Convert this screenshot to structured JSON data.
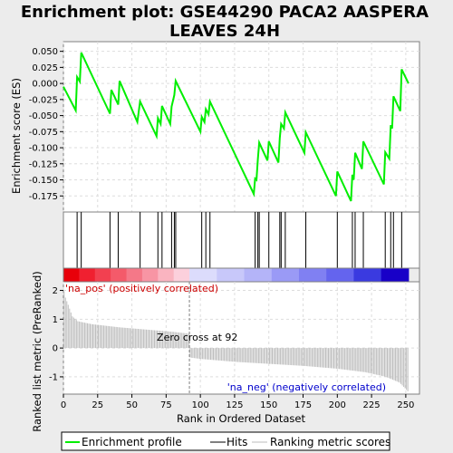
{
  "chart_data": {
    "type": "line",
    "title_line1": "Enrichment plot: GSE44290 PACA2 AASPERA",
    "title_line2": "LEAVES 24H",
    "top_panel": {
      "ylabel": "Enrichment score (ES)",
      "ylim": [
        -0.2,
        0.065
      ],
      "yticks": [
        "0.050",
        "0.025",
        "0.000",
        "-0.025",
        "-0.050",
        "-0.075",
        "-0.100",
        "-0.125",
        "-0.150",
        "-0.175"
      ],
      "ytick_values": [
        0.05,
        0.025,
        0.0,
        -0.025,
        -0.05,
        -0.075,
        -0.1,
        -0.125,
        -0.15,
        -0.175
      ],
      "grid": true,
      "line_color": "#00ee00",
      "es_points": [
        [
          0,
          -0.005
        ],
        [
          9,
          -0.042
        ],
        [
          10,
          0.01
        ],
        [
          12,
          0.003
        ],
        [
          13,
          0.048
        ],
        [
          34,
          -0.047
        ],
        [
          35,
          -0.01
        ],
        [
          40,
          -0.033
        ],
        [
          41,
          0.004
        ],
        [
          54,
          -0.06
        ],
        [
          56,
          -0.028
        ],
        [
          68,
          -0.082
        ],
        [
          69,
          -0.054
        ],
        [
          71,
          -0.063
        ],
        [
          72,
          -0.035
        ],
        [
          78,
          -0.063
        ],
        [
          79,
          -0.036
        ],
        [
          81,
          -0.018
        ],
        [
          82,
          0.004
        ],
        [
          100,
          -0.075
        ],
        [
          101,
          -0.052
        ],
        [
          103,
          -0.06
        ],
        [
          104,
          -0.04
        ],
        [
          106,
          -0.048
        ],
        [
          107,
          -0.028
        ],
        [
          139,
          -0.172
        ],
        [
          140,
          -0.148
        ],
        [
          141,
          -0.15
        ],
        [
          142,
          -0.118
        ],
        [
          143,
          -0.092
        ],
        [
          149,
          -0.12
        ],
        [
          150,
          -0.09
        ],
        [
          157,
          -0.123
        ],
        [
          158,
          -0.085
        ],
        [
          159,
          -0.063
        ],
        [
          161,
          -0.07
        ],
        [
          162,
          -0.045
        ],
        [
          176,
          -0.108
        ],
        [
          177,
          -0.076
        ],
        [
          199,
          -0.175
        ],
        [
          200,
          -0.137
        ],
        [
          210,
          -0.183
        ],
        [
          211,
          -0.142
        ],
        [
          212,
          -0.15
        ],
        [
          213,
          -0.108
        ],
        [
          218,
          -0.133
        ],
        [
          219,
          -0.09
        ],
        [
          234,
          -0.157
        ],
        [
          235,
          -0.107
        ],
        [
          238,
          -0.117
        ],
        [
          239,
          -0.065
        ],
        [
          240,
          -0.07
        ],
        [
          241,
          -0.02
        ],
        [
          246,
          -0.043
        ],
        [
          247,
          0.022
        ],
        [
          252,
          0.0
        ]
      ]
    },
    "hits": {
      "ylabel": "",
      "positions": [
        10,
        13,
        34,
        40,
        56,
        69,
        72,
        79,
        81,
        82,
        101,
        104,
        107,
        140,
        142,
        143,
        150,
        158,
        159,
        162,
        177,
        200,
        211,
        213,
        219,
        235,
        239,
        241,
        247
      ]
    },
    "rank_panel": {
      "ylabel": "Ranked list metric (PreRanked)",
      "xlabel": "Rank in Ordered Dataset",
      "xlim": [
        0,
        260
      ],
      "xticks": [
        0,
        25,
        50,
        75,
        100,
        125,
        150,
        175,
        200,
        225,
        250
      ],
      "ylim": [
        -1.6,
        2.3
      ],
      "yticks": [
        2,
        1,
        0,
        -1
      ],
      "n": 252,
      "zero_cross": 92,
      "zero_cross_label": "Zero cross at 92",
      "pos_label": "'na_pos' (positively correlated)",
      "neg_label": "'na_neg' (negatively correlated)",
      "metric_profile": [
        [
          0,
          1.95
        ],
        [
          1,
          1.75
        ],
        [
          3,
          1.5
        ],
        [
          6,
          1.1
        ],
        [
          10,
          0.93
        ],
        [
          20,
          0.83
        ],
        [
          40,
          0.72
        ],
        [
          60,
          0.64
        ],
        [
          80,
          0.56
        ],
        [
          91,
          0.5
        ],
        [
          92,
          -0.33
        ],
        [
          100,
          -0.38
        ],
        [
          125,
          -0.48
        ],
        [
          150,
          -0.55
        ],
        [
          175,
          -0.62
        ],
        [
          200,
          -0.72
        ],
        [
          220,
          -0.84
        ],
        [
          235,
          -1.0
        ],
        [
          245,
          -1.2
        ],
        [
          252,
          -1.55
        ]
      ]
    },
    "legend": [
      "Enrichment profile",
      "Hits",
      "Ranking metric scores"
    ],
    "colors": {
      "es_line": "#00ee00",
      "hits": "#000000",
      "ranking": "#bebebe",
      "pos_text": "#cc0000",
      "neg_text": "#0000cc",
      "zero_line": "#808080"
    }
  }
}
